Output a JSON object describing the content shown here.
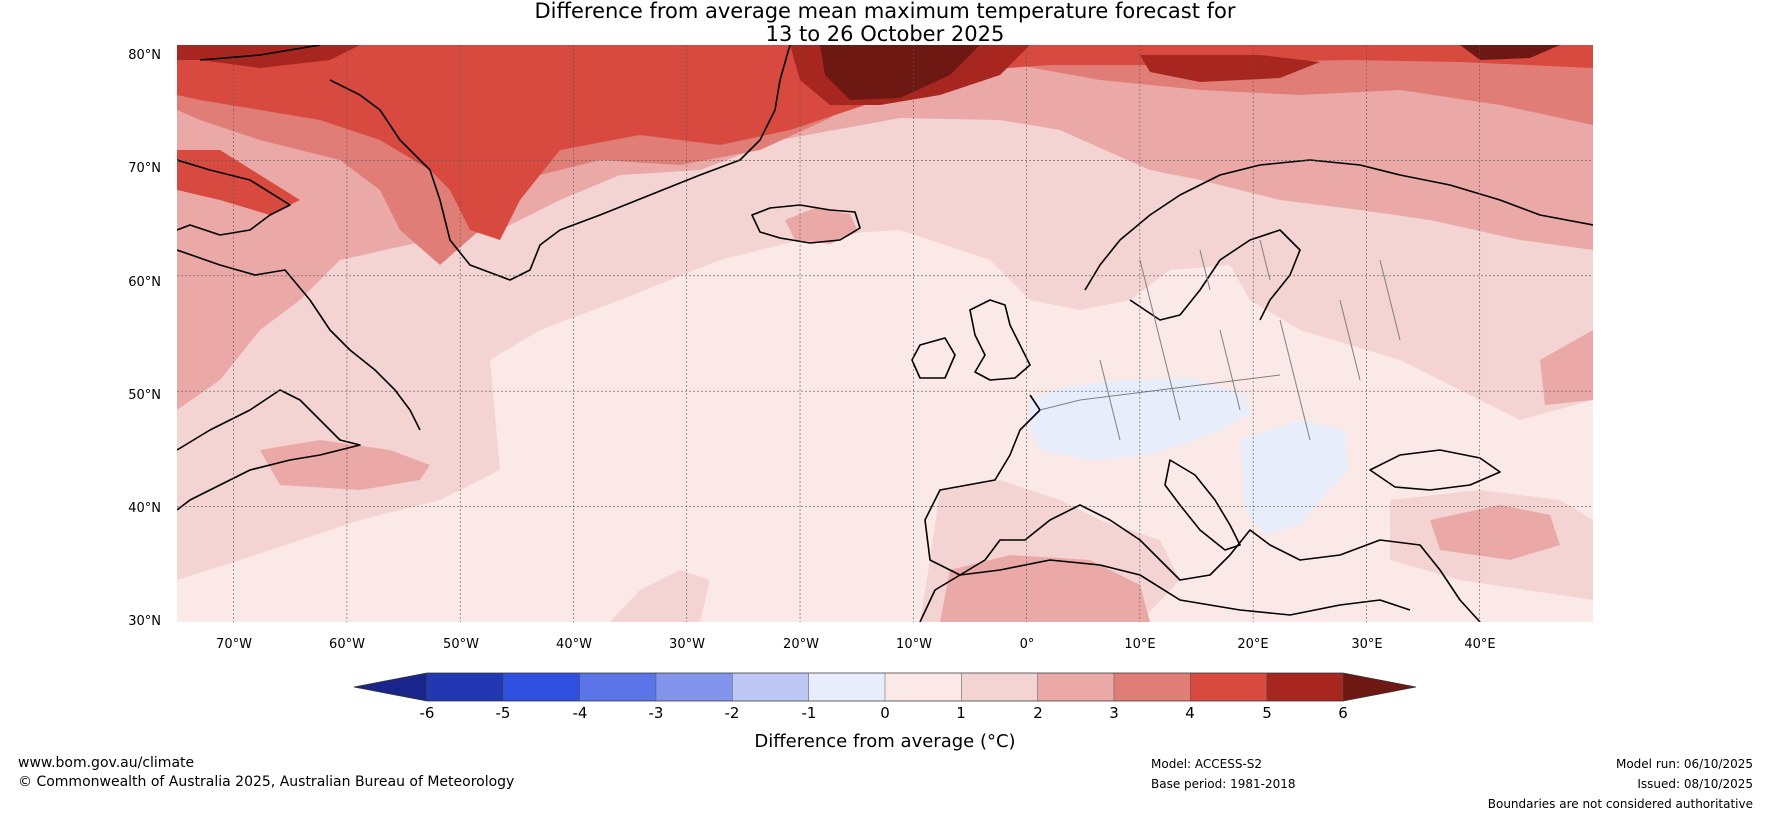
{
  "title": {
    "line1": "Difference from average mean maximum temperature forecast for",
    "line2": "13 to 26 October 2025"
  },
  "map": {
    "projection": "plate-carree",
    "lon_range": [
      -75,
      50
    ],
    "lat_range": [
      30,
      80
    ],
    "lat_labels": [
      "80°N",
      "70°N",
      "60°N",
      "50°N",
      "40°N",
      "30°N"
    ],
    "lon_labels": [
      "70°W",
      "60°W",
      "50°W",
      "40°W",
      "30°W",
      "20°W",
      "10°W",
      "0°",
      "10°E",
      "20°E",
      "30°E",
      "40°E"
    ],
    "gridlines": true
  },
  "colorbar": {
    "label": "Difference from average (°C)",
    "ticks": [
      "-6",
      "-5",
      "-4",
      "-3",
      "-2",
      "-1",
      "0",
      "1",
      "2",
      "3",
      "4",
      "5",
      "6"
    ],
    "colors": [
      "#19258a",
      "#2238b2",
      "#2f4fe0",
      "#5b74e8",
      "#8294eb",
      "#bfc8f5",
      "#e8edfc",
      "#fbe9e8",
      "#f4d3d3",
      "#eaa9a7",
      "#e17d77",
      "#d84a40",
      "#a72720",
      "#6e1814"
    ]
  },
  "footer": {
    "website": "www.bom.gov.au/climate",
    "copyright": "© Commonwealth of Australia 2025, Australian Bureau of Meteorology",
    "model": "Model: ACCESS-S2",
    "base_period": "Base period: 1981-2018",
    "model_run": "Model run: 06/10/2025",
    "issued": "Issued: 08/10/2025",
    "disclaimer": "Boundaries are not considered authoritative"
  }
}
